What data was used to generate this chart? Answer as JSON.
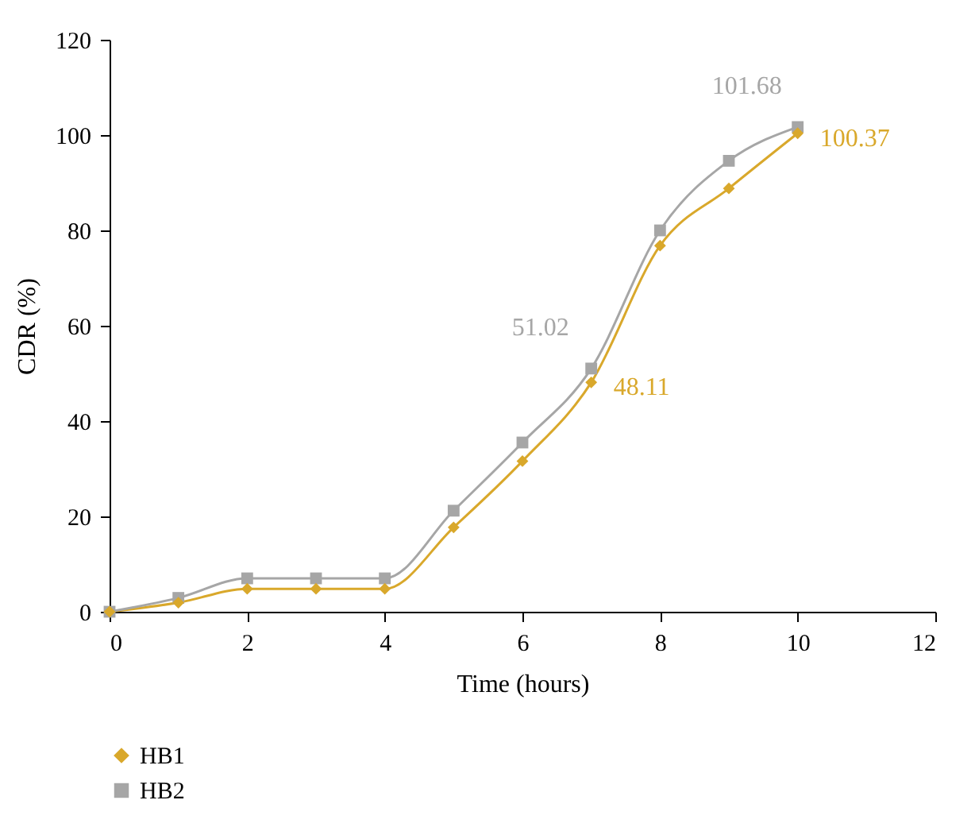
{
  "chart_data": {
    "type": "line",
    "xlabel": "Time (hours)",
    "ylabel": "CDR (%)",
    "x": [
      0,
      1,
      2,
      3,
      4,
      5,
      6,
      7,
      8,
      9,
      10
    ],
    "series": [
      {
        "name": "HB1",
        "color": "#d9a82b",
        "marker": "diamond",
        "values": [
          0,
          1.9,
          4.8,
          4.8,
          4.8,
          17.7,
          31.6,
          48.11,
          76.8,
          88.8,
          100.37
        ],
        "value_labels": [
          null,
          null,
          null,
          null,
          null,
          null,
          null,
          "48.11",
          null,
          null,
          "100.37"
        ]
      },
      {
        "name": "HB2",
        "color": "#a6a6a6",
        "marker": "square",
        "values": [
          0,
          2.9,
          7.0,
          7.0,
          7.0,
          21.2,
          35.5,
          51.02,
          80.0,
          94.6,
          101.68
        ],
        "value_labels": [
          null,
          null,
          null,
          null,
          null,
          null,
          null,
          "51.02",
          null,
          null,
          "101.68"
        ]
      }
    ],
    "xlim": [
      0,
      12
    ],
    "xticks": [
      0,
      2,
      4,
      6,
      8,
      10,
      12
    ],
    "ylim": [
      0,
      120
    ],
    "yticks": [
      0,
      20,
      40,
      60,
      80,
      100,
      120
    ],
    "grid": false,
    "legend": "bottom",
    "line_style": "solid"
  }
}
